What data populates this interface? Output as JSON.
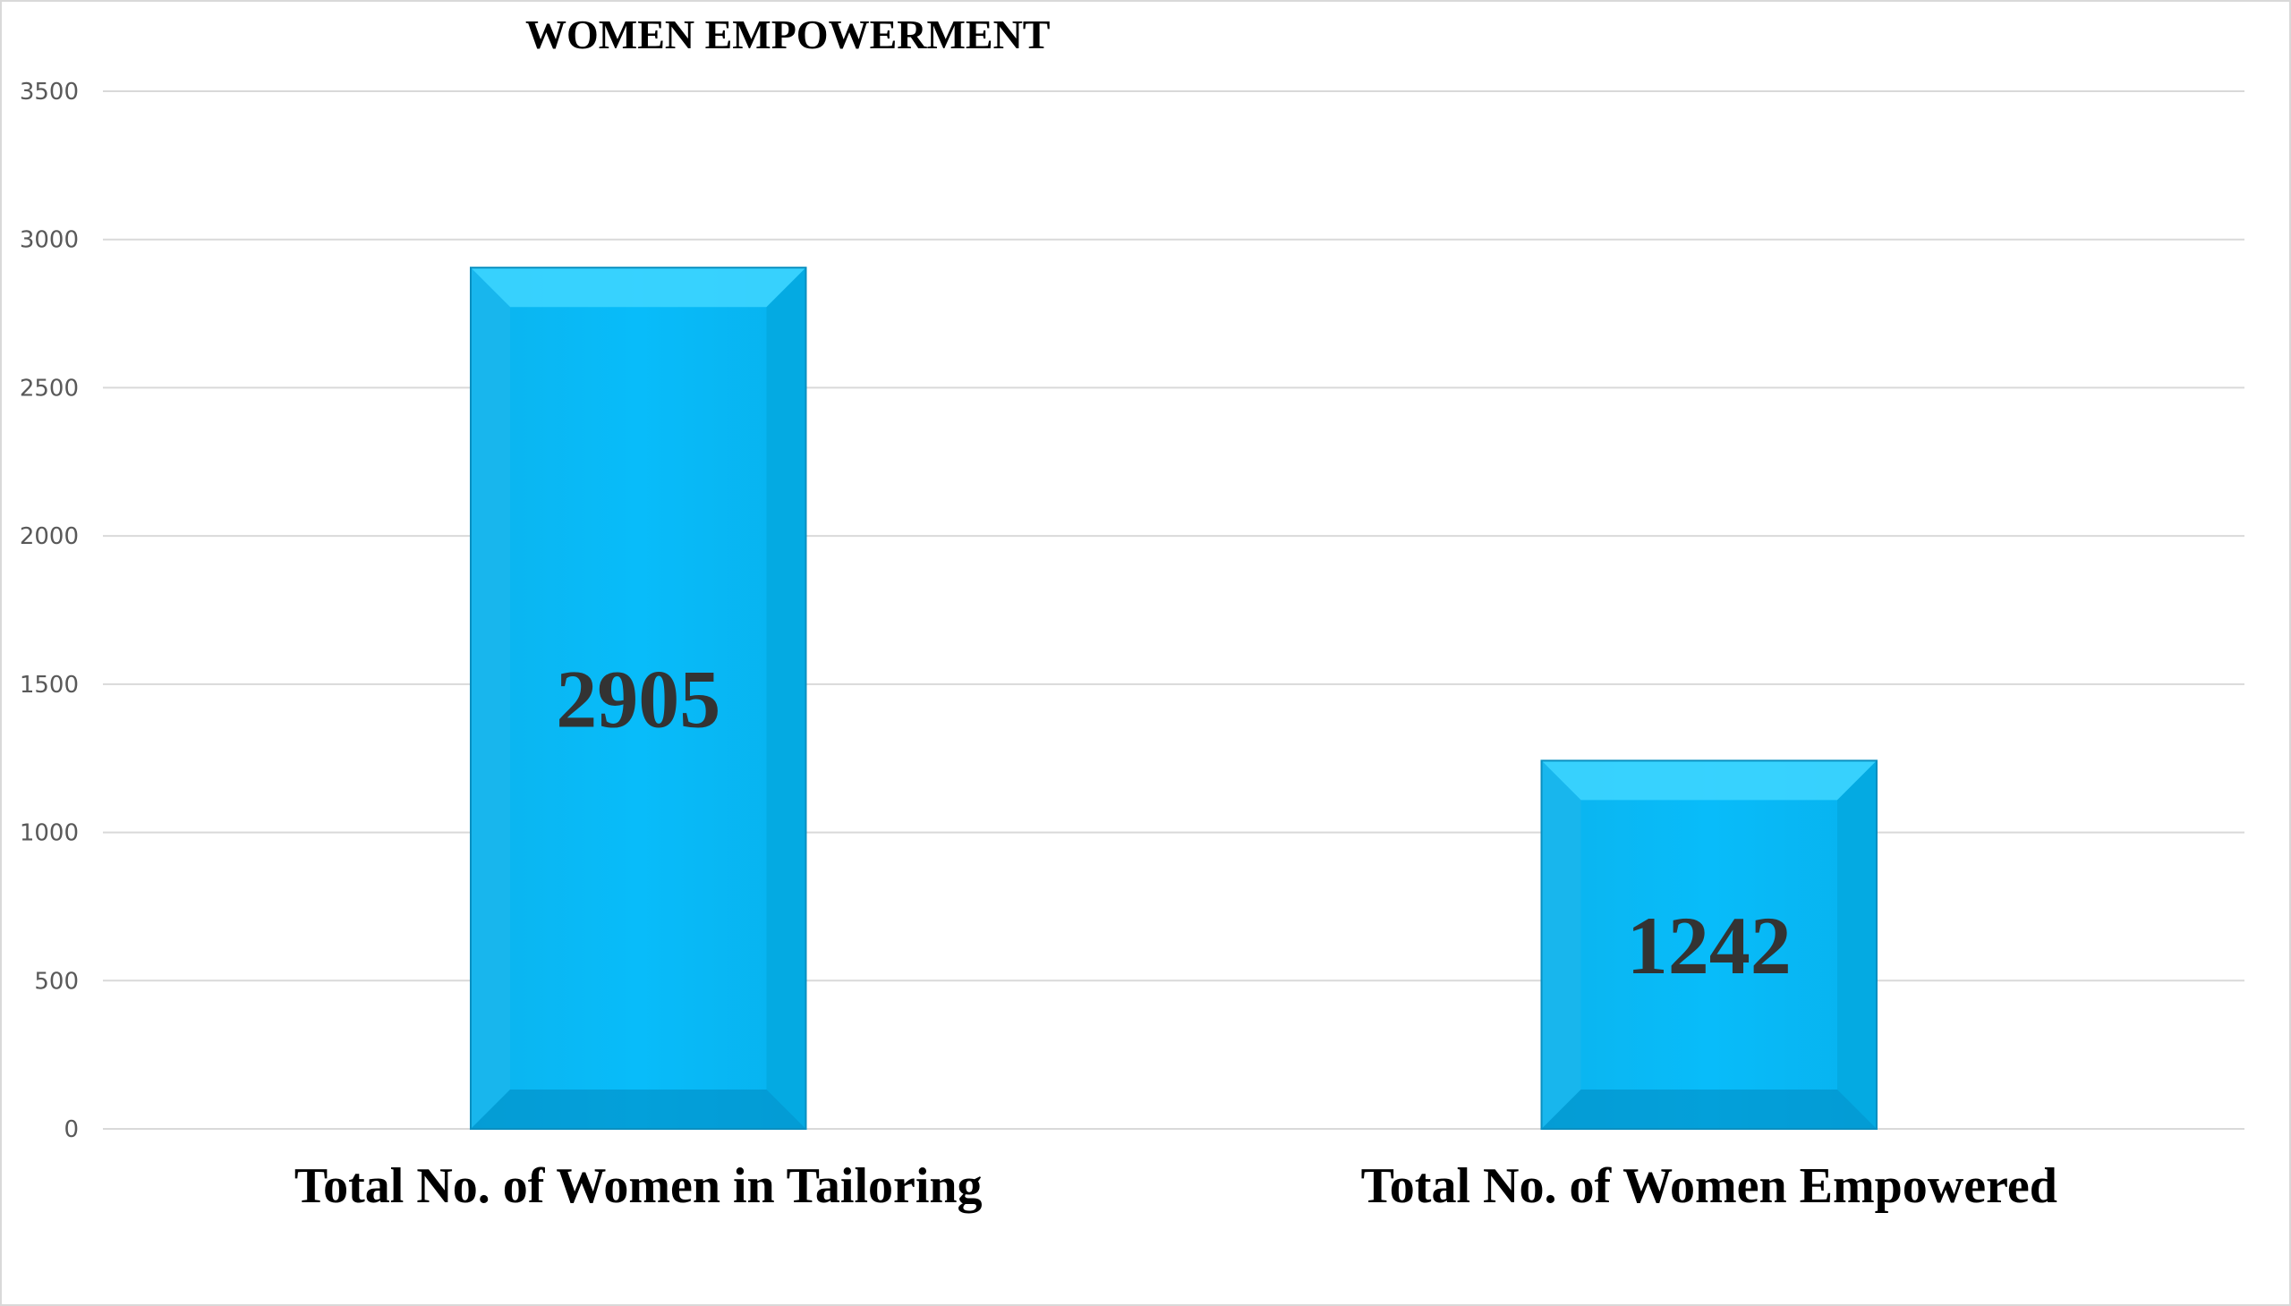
{
  "chart_data": {
    "type": "bar",
    "title": "WOMEN EMPOWERMENT",
    "xlabel": "",
    "ylabel": "",
    "categories": [
      "Total No. of Women in Tailoring",
      "Total No. of Women Empowered"
    ],
    "values": [
      2905,
      1242
    ],
    "data_labels": [
      "2905",
      "1242"
    ],
    "ylim": [
      0,
      3500
    ],
    "yticks": [
      0,
      500,
      1000,
      1500,
      2000,
      2500,
      3000,
      3500
    ],
    "ytick_labels": [
      "0",
      "500",
      "1000",
      "1500",
      "2000",
      "2500",
      "3000",
      "3500"
    ],
    "grid": true,
    "legend": "none",
    "colors": {
      "bar_fill": "#00B8F5",
      "bar_highlight": "#3FD6FF",
      "bar_shadow": "#0089BF",
      "gridline": "#D9D9D9",
      "tick_text": "#595959",
      "data_label": "#333333"
    }
  }
}
